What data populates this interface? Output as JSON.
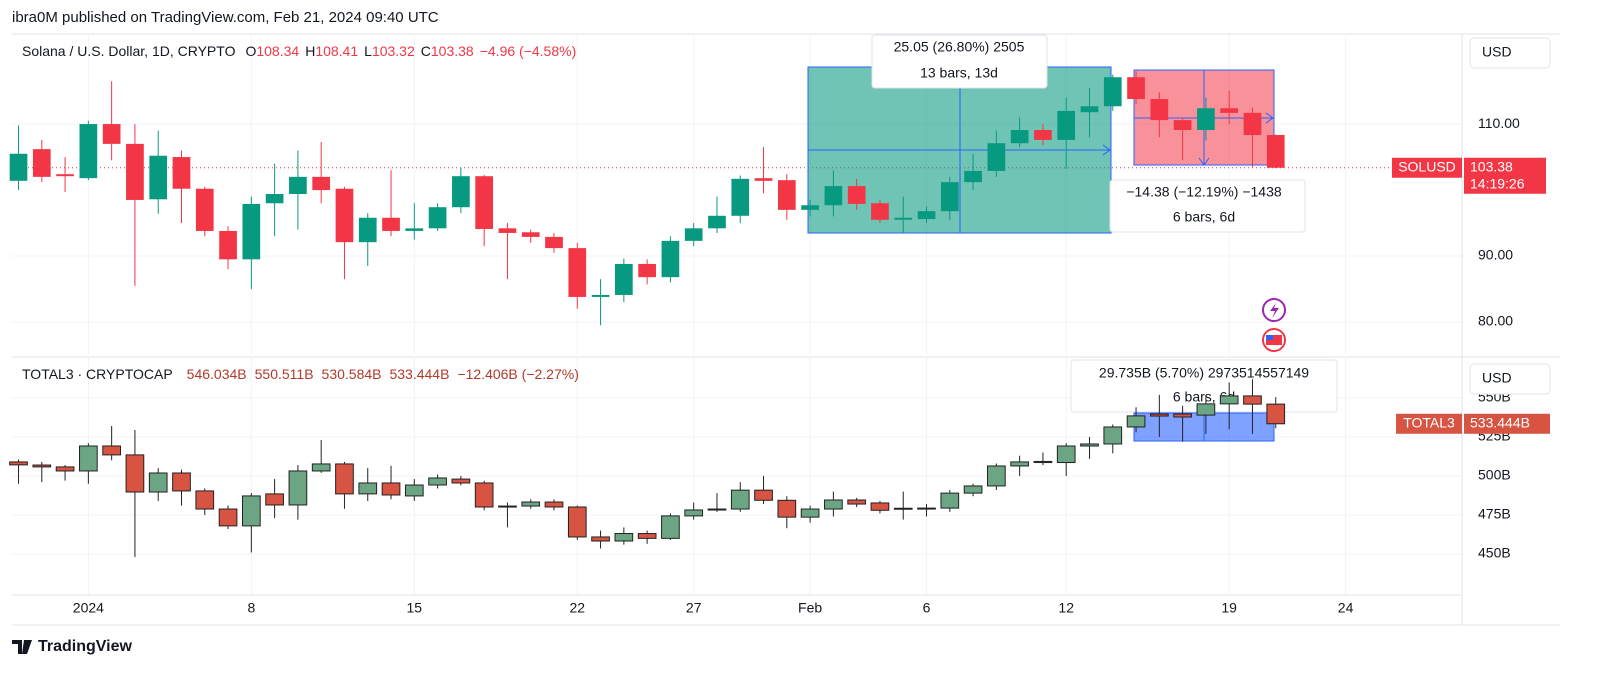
{
  "header": "ibra0M published on TradingView.com, Feb 21, 2024 09:40 UTC",
  "footer": "TradingView",
  "chart_data": [
    {
      "type": "candlestick",
      "title": "Solana / U.S. Dollar, 1D, CRYPTO",
      "legend_keys": [
        "O",
        "H",
        "L",
        "C"
      ],
      "legend_change": "−4.96 (−4.58%)",
      "symbol_label": "SOLUSD",
      "countdown": "14:19:26",
      "currency": "USD",
      "up_color": "#089981",
      "down_color": "#f23645",
      "wick_color": null,
      "measures": [
        {
          "text": "25.05 (26.80%) 2505",
          "bars": "13 bars, 13d"
        },
        {
          "text": "−14.38 (−12.19%) −1438",
          "bars": "6 bars, 6d"
        }
      ],
      "ylim": [
        75,
        123.5
      ],
      "yticks": [
        {
          "value": 80,
          "label": "80.00"
        },
        {
          "value": 90,
          "label": "90.00"
        },
        {
          "value": 110,
          "label": "110.00"
        }
      ],
      "open": [
        101.4,
        106.2,
        102.4,
        101.8,
        110,
        107,
        98.6,
        105,
        100.2,
        93.8,
        89.5,
        98,
        99.4,
        102,
        100.2,
        92.1,
        95.8,
        93.8,
        94.2,
        97.4,
        102.1,
        94.2,
        93.6,
        92.9,
        91.2,
        83.8,
        84.1,
        88.8,
        86.8,
        92.3,
        94.2,
        96.1,
        101.8,
        101.5,
        97,
        97.7,
        100.6,
        98,
        95.5,
        95.6,
        96.8,
        101.2,
        102.9,
        107.1,
        109.1,
        107.6,
        111.8,
        112.7,
        117.1,
        113.8,
        110.6,
        109.1,
        112.4,
        111.7,
        108.34
      ],
      "high": [
        109.8,
        107.6,
        105,
        110.5,
        116.5,
        110,
        109,
        106,
        100.5,
        94.5,
        99,
        104,
        106,
        107.3,
        100.5,
        96.5,
        103,
        98,
        98,
        103.4,
        102.3,
        95,
        94,
        93.5,
        92,
        86.5,
        89.6,
        89.5,
        93,
        95,
        99,
        102.2,
        106.5,
        102.4,
        98.5,
        103,
        101.7,
        98.5,
        99,
        97.5,
        102,
        105.5,
        109,
        111,
        110,
        114,
        115.5,
        117.5,
        118,
        114.8,
        111,
        114,
        115,
        112.5,
        108.41
      ],
      "low": [
        100,
        101.2,
        99.7,
        101.5,
        104.5,
        85.5,
        96.4,
        95,
        93,
        88,
        85,
        93,
        94,
        98,
        86.5,
        88.5,
        93,
        92.5,
        93.8,
        96.5,
        91.5,
        86.5,
        92,
        90.5,
        82,
        79.5,
        83,
        85.7,
        86,
        91.5,
        93.5,
        95,
        99.5,
        95.5,
        96,
        96,
        97,
        95,
        93.5,
        95,
        95.5,
        100,
        102,
        106.5,
        106.8,
        103.2,
        108,
        112,
        113,
        108,
        104.5,
        107.5,
        110,
        103.5,
        103.32
      ],
      "close": [
        105.5,
        102,
        102.1,
        110,
        107,
        98.5,
        105.2,
        100.2,
        93.8,
        89.5,
        97.9,
        99.4,
        102,
        100,
        92.1,
        95.8,
        93.8,
        94.2,
        97.4,
        102.1,
        94.1,
        93.5,
        92.9,
        91.2,
        83.8,
        84.1,
        88.8,
        86.8,
        92.3,
        94.2,
        96.1,
        101.7,
        101.4,
        97,
        97.7,
        100.6,
        97.9,
        95.5,
        95.8,
        96.8,
        101.2,
        102.9,
        107.1,
        109.1,
        107.6,
        112,
        112.7,
        117.1,
        113.8,
        110.6,
        109.1,
        112.4,
        111.7,
        108.34,
        103.38
      ]
    },
    {
      "type": "candlestick",
      "title": "TOTAL3 · CRYPTOCAP",
      "legend_values": [
        "546.034B",
        "550.511B",
        "530.584B",
        "533.444B",
        "−12.406B (−2.27%)"
      ],
      "symbol_label": "TOTAL3",
      "last_label": "533.444B",
      "currency": "USD",
      "up_color": "#6ba583",
      "down_color": "#d75442",
      "wick_color": "#222222",
      "measures": [
        {
          "text": "29.735B (5.70%) 2973514557149",
          "bars": "6 bars, 6d"
        }
      ],
      "ylim": [
        423.7,
        575.6
      ],
      "yticks": [
        {
          "value": 450,
          "label": "450B"
        },
        {
          "value": 475,
          "label": "475B"
        },
        {
          "value": 500,
          "label": "500B"
        },
        {
          "value": 525,
          "label": "525B"
        },
        {
          "value": 550,
          "label": "550B"
        }
      ],
      "xlim": [
        -0.28,
        62
      ],
      "xticks": [
        {
          "value": 3,
          "label": "2024"
        },
        {
          "value": 10,
          "label": "8"
        },
        {
          "value": 17,
          "label": "15"
        },
        {
          "value": 24,
          "label": "22"
        },
        {
          "value": 29,
          "label": "27"
        },
        {
          "value": 34,
          "label": "Feb"
        },
        {
          "value": 39,
          "label": "6"
        },
        {
          "value": 45,
          "label": "12"
        },
        {
          "value": 52,
          "label": "19"
        },
        {
          "value": 57,
          "label": "24"
        }
      ],
      "open": [
        509,
        507,
        505.8,
        503.2,
        519.2,
        513.5,
        489.7,
        501.9,
        490.4,
        478.8,
        468,
        488.5,
        481.4,
        503.2,
        507.7,
        488.5,
        495.5,
        487.2,
        494.2,
        498,
        495.5,
        480.7,
        480.7,
        483.3,
        480.1,
        460.9,
        458.3,
        463.1,
        460,
        474.4,
        478.2,
        478.8,
        490.9,
        484.4,
        473.6,
        478.8,
        484.6,
        482.7,
        479.3,
        478.9,
        479.4,
        489,
        493.6,
        506.4,
        509.3,
        508.6,
        519.2,
        520.5,
        531.4,
        539.7,
        539.7,
        539,
        546.2,
        551.3,
        546.034
      ],
      "high": [
        510.5,
        509,
        507,
        521,
        532,
        529.5,
        505,
        504,
        492,
        481,
        489,
        498,
        507,
        523,
        509,
        505,
        506.5,
        498,
        501,
        500,
        497,
        483,
        485,
        485,
        481,
        465,
        467,
        465,
        476,
        483,
        489,
        496,
        500,
        487,
        481,
        490,
        486,
        484,
        490,
        482,
        491,
        495,
        508,
        513,
        515,
        521,
        525,
        533,
        544,
        552,
        545,
        552,
        560,
        562,
        550.511
      ],
      "low": [
        495,
        496,
        497,
        495,
        510,
        448,
        484,
        481,
        475,
        466,
        451,
        473,
        472,
        502,
        479,
        484,
        485,
        484,
        492,
        494,
        478,
        467,
        479,
        478,
        459,
        453.5,
        456,
        456.5,
        459,
        472,
        477,
        477,
        482,
        466.5,
        470,
        474,
        480,
        476,
        472,
        474,
        477,
        487,
        491,
        500,
        507,
        500,
        511,
        514.5,
        528,
        525,
        522,
        527,
        530,
        527,
        530.584
      ],
      "close": [
        507.1,
        505.8,
        503.2,
        519.2,
        513.5,
        489.7,
        501.9,
        490.4,
        478.8,
        468,
        487.2,
        481.4,
        503.2,
        507.7,
        488.5,
        495.5,
        487.8,
        494.2,
        498.7,
        495.5,
        480.1,
        480.4,
        483.3,
        480.1,
        460.9,
        458.3,
        463.1,
        460,
        474.4,
        478.2,
        478.8,
        490.9,
        484.4,
        473.6,
        478.8,
        484.6,
        482,
        478,
        478.9,
        479.4,
        489,
        493.6,
        506.4,
        509,
        508.6,
        519.2,
        520.5,
        531.4,
        538.5,
        538.4,
        537.8,
        546.2,
        551.3,
        546.034,
        533.444
      ]
    }
  ]
}
